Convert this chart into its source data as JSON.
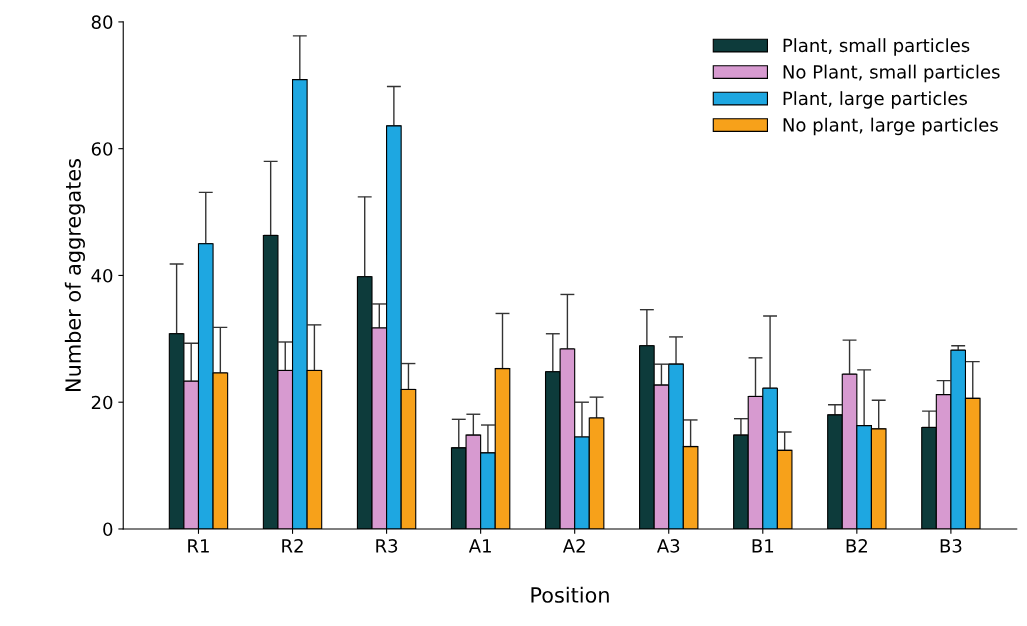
{
  "chart_data": {
    "type": "bar",
    "xlabel": "Position",
    "ylabel": "Number of aggregates",
    "categories": [
      "R1",
      "R2",
      "R3",
      "A1",
      "A2",
      "A3",
      "B1",
      "B2",
      "B3"
    ],
    "ylim": [
      0,
      80
    ],
    "yticks": [
      0,
      20,
      40,
      60,
      80
    ],
    "grid": false,
    "legend": "top right",
    "series": [
      {
        "name": "Plant, small particles",
        "color": "#0d3b3b",
        "values": [
          30.8,
          46.3,
          39.8,
          12.8,
          24.8,
          28.9,
          14.8,
          18,
          16
        ],
        "errors": [
          [
            30.8,
            41.8
          ],
          [
            46.3,
            58
          ],
          [
            39.8,
            52.4
          ],
          [
            12.8,
            17.3
          ],
          [
            24.8,
            30.8
          ],
          [
            28.9,
            34.6
          ],
          [
            14.8,
            17.4
          ],
          [
            18,
            19.6
          ],
          [
            16,
            18.6
          ]
        ]
      },
      {
        "name": "No Plant, small particles",
        "color": "#d79ad0",
        "values": [
          23.3,
          25,
          31.7,
          14.8,
          28.4,
          22.7,
          20.9,
          24.4,
          21.2
        ],
        "errors": [
          [
            23.3,
            29.3
          ],
          [
            25,
            29.5
          ],
          [
            31.7,
            35.5
          ],
          [
            14.8,
            18.1
          ],
          [
            28.4,
            37
          ],
          [
            22.7,
            26
          ],
          [
            20.9,
            27
          ],
          [
            24.4,
            29.8
          ],
          [
            21.2,
            23.4
          ]
        ]
      },
      {
        "name": "Plant, large particles",
        "color": "#1ea7e1",
        "values": [
          45,
          70.9,
          63.6,
          12,
          14.5,
          26,
          22.2,
          16.3,
          28.2
        ],
        "errors": [
          [
            45,
            53.1
          ],
          [
            70.9,
            77.8
          ],
          [
            63.6,
            69.8
          ],
          [
            12,
            16.4
          ],
          [
            14.5,
            20
          ],
          [
            26,
            30.3
          ],
          [
            22.2,
            33.6
          ],
          [
            16.3,
            25.1
          ],
          [
            28.2,
            28.9
          ]
        ]
      },
      {
        "name": "No plant, large particles",
        "color": "#f7a11a",
        "values": [
          24.6,
          25,
          22,
          25.3,
          17.5,
          13,
          12.4,
          15.8,
          20.6
        ],
        "errors": [
          [
            24.6,
            31.8
          ],
          [
            25,
            32.2
          ],
          [
            22,
            26.1
          ],
          [
            25.3,
            34
          ],
          [
            17.5,
            20.8
          ],
          [
            13,
            17.2
          ],
          [
            12.4,
            15.3
          ],
          [
            15.8,
            20.3
          ],
          [
            20.6,
            26.4
          ]
        ]
      }
    ]
  }
}
